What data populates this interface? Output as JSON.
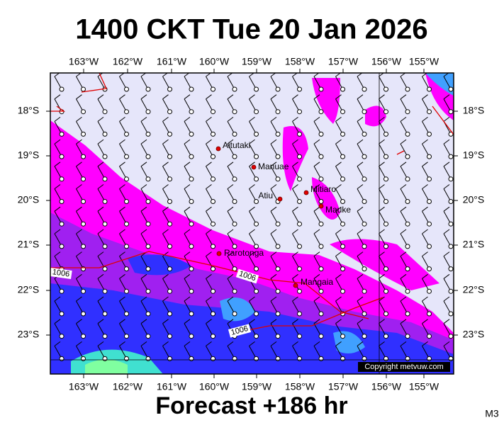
{
  "header": {
    "title": "1400 CKT Tue 20 Jan 2026"
  },
  "map": {
    "lon_labels": [
      "163°W",
      "162°W",
      "161°W",
      "160°W",
      "159°W",
      "158°W",
      "157°W",
      "156°W",
      "155°W"
    ],
    "lat_labels": [
      "18°S",
      "19°S",
      "20°S",
      "21°S",
      "22°S",
      "23°S"
    ],
    "places": [
      "Aitutaki",
      "Manuae",
      "Atiu",
      "Mitiaro",
      "Mauke",
      "Rarotonga",
      "Mangaia"
    ],
    "isobar_labels": [
      "1006",
      "1006",
      "1006"
    ],
    "copyright": "Copyright metvuw.com"
  },
  "footer": {
    "forecast": "Forecast +186 hr",
    "code": "M3"
  }
}
